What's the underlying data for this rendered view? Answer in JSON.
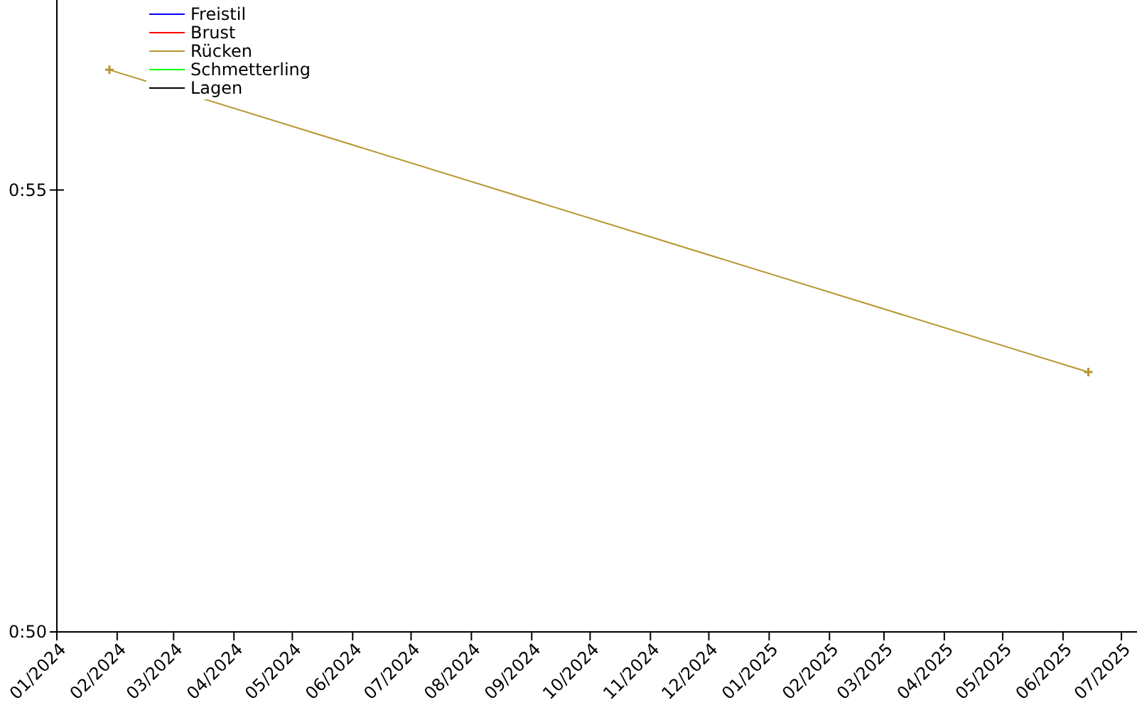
{
  "chart_data": {
    "type": "line",
    "x": [
      "2024-01-28",
      "2025-06-14"
    ],
    "series": [
      {
        "name": "Freistil",
        "color": "#0000ff",
        "values": [
          null,
          null
        ]
      },
      {
        "name": "Brust",
        "color": "#ff0000",
        "values": [
          null,
          null
        ]
      },
      {
        "name": "Rücken",
        "color": "#b8962e",
        "values": [
          56.36,
          52.94
        ]
      },
      {
        "name": "Schmetterling",
        "color": "#00ff00",
        "values": [
          null,
          null
        ]
      },
      {
        "name": "Lagen",
        "color": "#000000",
        "values": [
          null,
          null
        ]
      }
    ],
    "xlim": [
      "2024-01-01",
      "2025-07-09"
    ],
    "xticks": [
      {
        "value": "2024-01",
        "label": "01/2024"
      },
      {
        "value": "2024-02",
        "label": "02/2024"
      },
      {
        "value": "2024-03",
        "label": "03/2024"
      },
      {
        "value": "2024-04",
        "label": "04/2024"
      },
      {
        "value": "2024-05",
        "label": "05/2024"
      },
      {
        "value": "2024-06",
        "label": "06/2024"
      },
      {
        "value": "2024-07",
        "label": "07/2024"
      },
      {
        "value": "2024-08",
        "label": "08/2024"
      },
      {
        "value": "2024-09",
        "label": "09/2024"
      },
      {
        "value": "2024-10",
        "label": "10/2024"
      },
      {
        "value": "2024-11",
        "label": "11/2024"
      },
      {
        "value": "2024-12",
        "label": "12/2024"
      },
      {
        "value": "2025-01",
        "label": "01/2025"
      },
      {
        "value": "2025-02",
        "label": "02/2025"
      },
      {
        "value": "2025-03",
        "label": "03/2025"
      },
      {
        "value": "2025-04",
        "label": "04/2025"
      },
      {
        "value": "2025-05",
        "label": "05/2025"
      },
      {
        "value": "2025-06",
        "label": "06/2025"
      },
      {
        "value": "2025-07",
        "label": "07/2025"
      }
    ],
    "ylim": [
      50,
      57.15
    ],
    "yticks": [
      {
        "value": 50,
        "label": "0:50"
      },
      {
        "value": 55,
        "label": "0:55"
      }
    ],
    "marker": "cross",
    "legend": "top left",
    "grid": false
  }
}
